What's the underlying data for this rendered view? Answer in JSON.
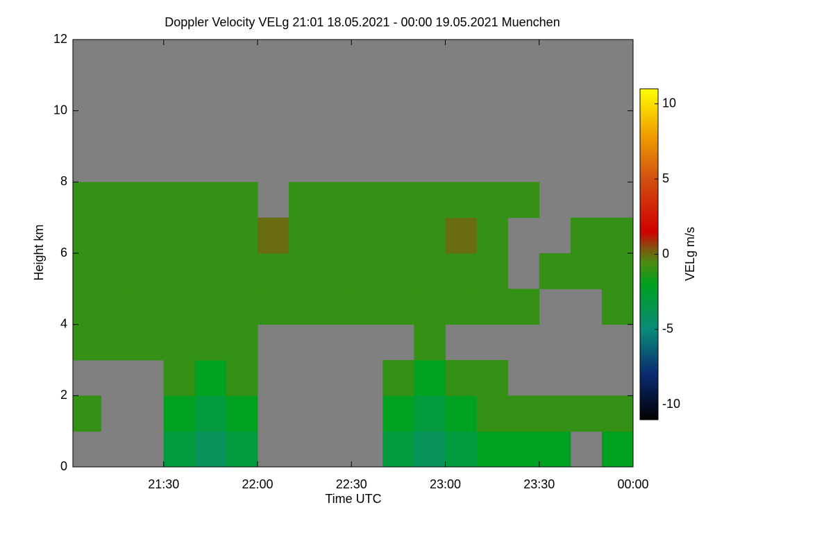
{
  "chart_data": {
    "type": "heatmap",
    "title": "Doppler Velocity VELg   21:01 18.05.2021 - 00:00 19.05.2021 Muenchen",
    "x_label": "Time UTC",
    "y_label": "Height km",
    "colorbar_label": "VELg m/s",
    "xlim": [
      1,
      180
    ],
    "xticks": [
      {
        "value": 30,
        "label": "21:30"
      },
      {
        "value": 60,
        "label": "22:00"
      },
      {
        "value": 90,
        "label": "22:30"
      },
      {
        "value": 120,
        "label": "23:00"
      },
      {
        "value": 150,
        "label": "23:30"
      },
      {
        "value": 180,
        "label": "00:00"
      }
    ],
    "ylim": [
      0,
      12
    ],
    "yticks": [
      0,
      2,
      4,
      6,
      8,
      10,
      12
    ],
    "zlim": [
      -11,
      11
    ],
    "zticks": [
      -10,
      -5,
      0,
      5,
      10
    ],
    "nodata_color": "#808080",
    "colorscale": [
      [
        -11,
        "#000000"
      ],
      [
        -8,
        "#0a2a70"
      ],
      [
        -5,
        "#0a8a78"
      ],
      [
        -2,
        "#00a020"
      ],
      [
        -0.5,
        "#4e8a10"
      ],
      [
        0.3,
        "#7a5a10"
      ],
      [
        1.5,
        "#d00000"
      ],
      [
        5,
        "#d05010"
      ],
      [
        8,
        "#f0a000"
      ],
      [
        11,
        "#ffff00"
      ]
    ],
    "x_bins": [
      1,
      10,
      20,
      30,
      40,
      50,
      60,
      70,
      80,
      90,
      100,
      110,
      120,
      130,
      140,
      150,
      160,
      170,
      180
    ],
    "y_bins": [
      0,
      1,
      2,
      3,
      4,
      5,
      6,
      7,
      8,
      9,
      10,
      11,
      12
    ],
    "z": [
      [
        null,
        null,
        null,
        -3,
        -4,
        -3,
        null,
        null,
        null,
        null,
        -3,
        -4,
        -3,
        -2,
        -2,
        -2,
        null,
        -2
      ],
      [
        -1,
        null,
        null,
        -2,
        -3,
        -2,
        null,
        null,
        null,
        null,
        -2,
        -3,
        -2,
        -1,
        -1,
        -1,
        -1,
        -1
      ],
      [
        null,
        null,
        null,
        -1,
        -2,
        -1,
        null,
        null,
        null,
        null,
        -1,
        -2,
        -1,
        -1,
        null,
        null,
        null,
        null
      ],
      [
        -1,
        -1,
        -1,
        -1,
        -1,
        -1,
        null,
        null,
        null,
        null,
        null,
        -1,
        null,
        null,
        null,
        null,
        null,
        null
      ],
      [
        -1,
        -1,
        -1,
        -1,
        -1,
        -1,
        -1,
        -1,
        -1,
        -1,
        -1,
        -1,
        -1,
        -1,
        -1,
        null,
        null,
        -1
      ],
      [
        -1,
        -1,
        -1,
        -1,
        -1,
        -1,
        -1,
        -1,
        -1,
        -1,
        -1,
        -1,
        -1,
        -1,
        null,
        -1,
        -1,
        -1
      ],
      [
        -1,
        -1,
        -1,
        -1,
        -1,
        -1,
        0,
        -1,
        -1,
        -1,
        -1,
        -1,
        0,
        -1,
        null,
        null,
        -1,
        -1
      ],
      [
        -1,
        -1,
        -1,
        -1,
        -1,
        -1,
        null,
        -1,
        -1,
        -1,
        -1,
        -1,
        -1,
        -1,
        -1,
        null,
        null,
        null
      ],
      [
        null,
        null,
        null,
        null,
        null,
        null,
        null,
        null,
        null,
        null,
        null,
        null,
        null,
        null,
        null,
        null,
        null,
        null
      ],
      [
        null,
        null,
        null,
        null,
        null,
        null,
        null,
        null,
        null,
        null,
        null,
        null,
        null,
        null,
        null,
        null,
        null,
        null
      ],
      [
        null,
        null,
        null,
        null,
        null,
        null,
        null,
        null,
        null,
        null,
        null,
        null,
        null,
        null,
        null,
        null,
        null,
        null
      ],
      [
        null,
        null,
        null,
        null,
        null,
        null,
        null,
        null,
        null,
        null,
        null,
        null,
        null,
        null,
        null,
        null,
        null,
        null
      ]
    ]
  }
}
